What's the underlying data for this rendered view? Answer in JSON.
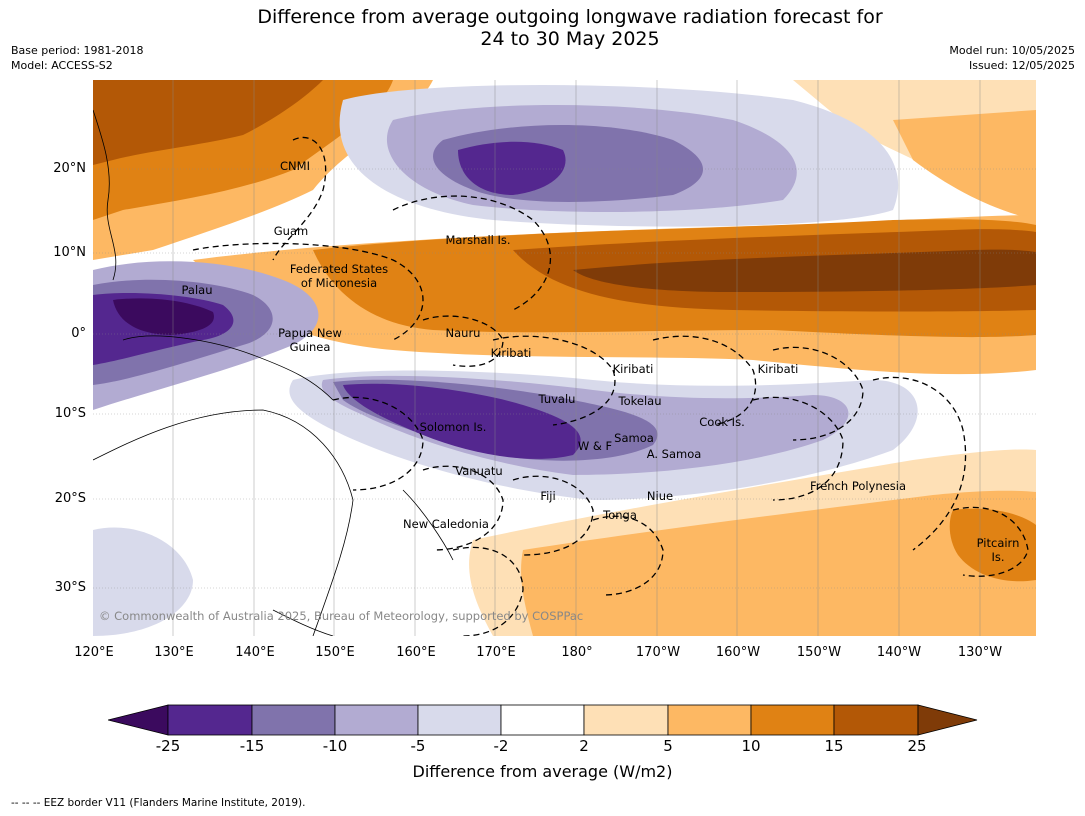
{
  "title_line1": "Difference from average outgoing longwave radiation forecast for",
  "title_line2": "24 to 30 May 2025",
  "base_period": "Base period: 1981-2018",
  "model": "Model: ACCESS-S2",
  "model_run": "Model run: 10/05/2025",
  "issued": "Issued: 12/05/2025",
  "copyright": "© Commonwealth of Australia 2025, Bureau of Meteorology, supported by COSPPac",
  "lon_ticks": [
    "120°E",
    "130°E",
    "140°E",
    "150°E",
    "160°E",
    "170°E",
    "180°",
    "170°W",
    "160°W",
    "150°W",
    "140°W",
    "130°W"
  ],
  "lat_ticks": [
    "20°N",
    "10°N",
    "0°",
    "10°S",
    "20°S",
    "30°S"
  ],
  "region_labels": [
    "CNMI",
    "Guam",
    "Marshall Is.",
    "Federated States",
    "of Micronesia",
    "Palau",
    "Papua New",
    "Guinea",
    "Nauru",
    "Kiribati",
    "Kiribati",
    "Kiribati",
    "Tuvalu",
    "Tokelau",
    "Cook Is.",
    "Solomon Is.",
    "Samoa",
    "W & F",
    "A. Samoa",
    "Vanuatu",
    "Fiji",
    "Niue",
    "Tonga",
    "French Polynesia",
    "New Caledonia",
    "Pitcairn",
    "Is."
  ],
  "colorbar": {
    "ticks": [
      "-25",
      "-15",
      "-10",
      "-5",
      "-2",
      "2",
      "5",
      "10",
      "15",
      "25"
    ],
    "colors": [
      "#3b0a5e",
      "#54278f",
      "#8073ac",
      "#b2abd2",
      "#d8daeb",
      "#ffffff",
      "#fee0b6",
      "#fdb863",
      "#e08214",
      "#b35806",
      "#7f3b08"
    ],
    "label": "Difference from average (W/m2)"
  },
  "footnote": "--  --  -- EEZ border V11 (Flanders Marine Institute, 2019)."
}
